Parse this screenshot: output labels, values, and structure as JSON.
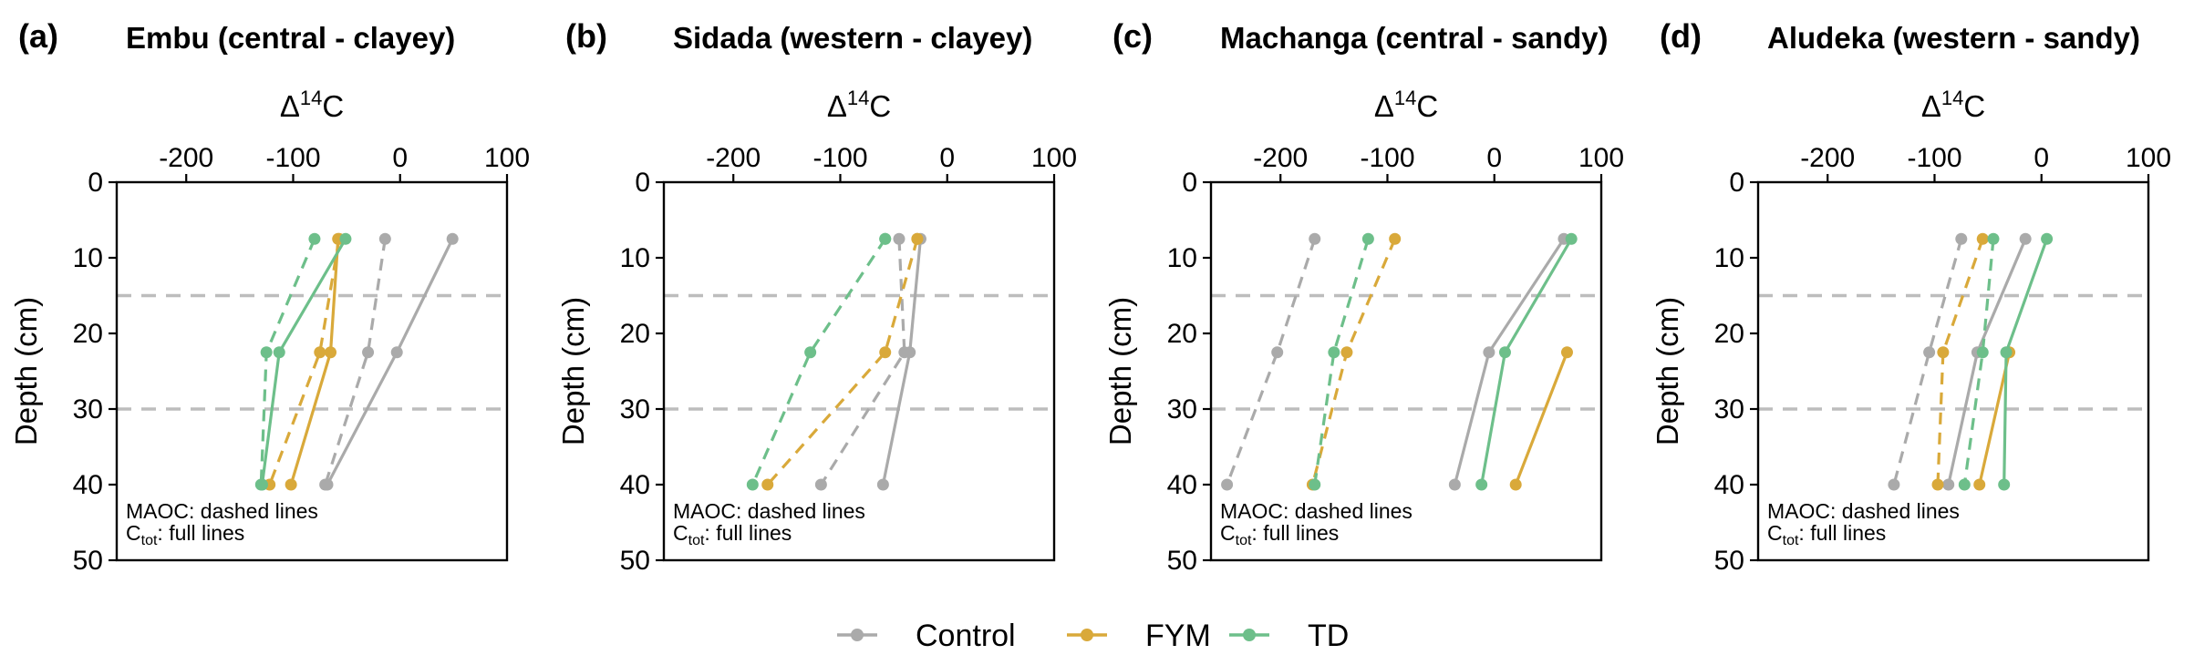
{
  "legend": [
    {
      "name": "Control",
      "color": "#AAAAAA"
    },
    {
      "name": "FYM",
      "color": "#D9A93A"
    },
    {
      "name": "TD",
      "color": "#6DBF8A"
    }
  ],
  "chart_data": [
    {
      "type": "line",
      "panel_letter": "(a)",
      "title": "Embu (central - clayey)",
      "xlabel_main": "Δ",
      "xlabel_sup": "14",
      "xlabel_tail": "C",
      "ylabel": "Depth (cm)",
      "xlim": [
        -265,
        100
      ],
      "ylim": [
        50,
        0
      ],
      "xticks": [
        -200,
        -100,
        0,
        100
      ],
      "yticks": [
        0,
        10,
        20,
        30,
        40,
        50
      ],
      "hlines": [
        15,
        30
      ],
      "note_line1": "MAOC: dashed lines",
      "note_line2_main": "C",
      "note_line2_sub": "tot",
      "note_line2_tail": ": full lines",
      "series": [
        {
          "name": "Control",
          "style": "solid",
          "points": [
            [
              49,
              7.5
            ],
            [
              -3,
              22.5
            ],
            [
              -68,
              40
            ]
          ]
        },
        {
          "name": "Control",
          "style": "dashed",
          "points": [
            [
              -14,
              7.5
            ],
            [
              -30,
              22.5
            ],
            [
              -70,
              40
            ]
          ]
        },
        {
          "name": "FYM",
          "style": "solid",
          "points": [
            [
              -58,
              7.5
            ],
            [
              -65,
              22.5
            ],
            [
              -102,
              40
            ]
          ]
        },
        {
          "name": "FYM",
          "style": "dashed",
          "points": [
            [
              -57,
              7.5
            ],
            [
              -75,
              22.5
            ],
            [
              -122,
              40
            ]
          ]
        },
        {
          "name": "TD",
          "style": "solid",
          "points": [
            [
              -51,
              7.5
            ],
            [
              -113,
              22.5
            ],
            [
              -129,
              40
            ]
          ]
        },
        {
          "name": "TD",
          "style": "dashed",
          "points": [
            [
              -80,
              7.5
            ],
            [
              -125,
              22.5
            ],
            [
              -130,
              40
            ]
          ]
        }
      ]
    },
    {
      "type": "line",
      "panel_letter": "(b)",
      "title": "Sidada (western - clayey)",
      "xlabel_main": "Δ",
      "xlabel_sup": "14",
      "xlabel_tail": "C",
      "ylabel": "Depth (cm)",
      "xlim": [
        -265,
        100
      ],
      "ylim": [
        50,
        0
      ],
      "xticks": [
        -200,
        -100,
        0,
        100
      ],
      "yticks": [
        0,
        10,
        20,
        30,
        40,
        50
      ],
      "hlines": [
        15,
        30
      ],
      "note_line1": "MAOC: dashed lines",
      "note_line2_main": "C",
      "note_line2_sub": "tot",
      "note_line2_tail": ": full lines",
      "series": [
        {
          "name": "Control",
          "style": "solid",
          "points": [
            [
              -25,
              7.5
            ],
            [
              -35,
              22.5
            ],
            [
              -60,
              40
            ]
          ]
        },
        {
          "name": "Control",
          "style": "dashed",
          "points": [
            [
              -45,
              7.5
            ],
            [
              -40,
              22.5
            ],
            [
              -118,
              40
            ]
          ]
        },
        {
          "name": "FYM",
          "style": "solid",
          "points": [
            [
              -28,
              7.5
            ]
          ]
        },
        {
          "name": "FYM",
          "style": "dashed",
          "points": [
            [
              -28,
              7.5
            ],
            [
              -58,
              22.5
            ],
            [
              -168,
              40
            ]
          ]
        },
        {
          "name": "TD",
          "style": "solid",
          "points": [
            [
              -58,
              7.5
            ]
          ]
        },
        {
          "name": "TD",
          "style": "dashed",
          "points": [
            [
              -58,
              7.5
            ],
            [
              -128,
              22.5
            ],
            [
              -182,
              40
            ]
          ]
        }
      ]
    },
    {
      "type": "line",
      "panel_letter": "(c)",
      "title": "Machanga (central - sandy)",
      "xlabel_main": "Δ",
      "xlabel_sup": "14",
      "xlabel_tail": "C",
      "ylabel": "Depth (cm)",
      "xlim": [
        -265,
        100
      ],
      "ylim": [
        50,
        0
      ],
      "xticks": [
        -200,
        -100,
        0,
        100
      ],
      "yticks": [
        0,
        10,
        20,
        30,
        40,
        50
      ],
      "hlines": [
        15,
        30
      ],
      "note_line1": "MAOC: dashed lines",
      "note_line2_main": "C",
      "note_line2_sub": "tot",
      "note_line2_tail": ": full lines",
      "series": [
        {
          "name": "Control",
          "style": "solid",
          "points": [
            [
              65,
              7.5
            ],
            [
              -5,
              22.5
            ],
            [
              -37,
              40
            ]
          ]
        },
        {
          "name": "Control",
          "style": "dashed",
          "points": [
            [
              -168,
              7.5
            ],
            [
              -203,
              22.5
            ],
            [
              -250,
              40
            ]
          ]
        },
        {
          "name": "FYM",
          "style": "solid",
          "points": [
            [
              68,
              22.5
            ],
            [
              20,
              40
            ]
          ]
        },
        {
          "name": "FYM",
          "style": "dashed",
          "points": [
            [
              -93,
              7.5
            ],
            [
              -138,
              22.5
            ],
            [
              -170,
              40
            ]
          ]
        },
        {
          "name": "TD",
          "style": "solid",
          "points": [
            [
              72,
              7.5
            ],
            [
              10,
              22.5
            ],
            [
              -12,
              40
            ]
          ]
        },
        {
          "name": "TD",
          "style": "dashed",
          "points": [
            [
              -118,
              7.5
            ],
            [
              -150,
              22.5
            ],
            [
              -168,
              40
            ]
          ]
        }
      ]
    },
    {
      "type": "line",
      "panel_letter": "(d)",
      "title": "Aludeka (western - sandy)",
      "xlabel_main": "Δ",
      "xlabel_sup": "14",
      "xlabel_tail": "C",
      "ylabel": "Depth (cm)",
      "xlim": [
        -265,
        100
      ],
      "ylim": [
        50,
        0
      ],
      "xticks": [
        -200,
        -100,
        0,
        100
      ],
      "yticks": [
        0,
        10,
        20,
        30,
        40,
        50
      ],
      "hlines": [
        15,
        30
      ],
      "note_line1": "MAOC: dashed lines",
      "note_line2_main": "C",
      "note_line2_sub": "tot",
      "note_line2_tail": ": full lines",
      "series": [
        {
          "name": "Control",
          "style": "solid",
          "points": [
            [
              -15,
              7.5
            ],
            [
              -60,
              22.5
            ],
            [
              -87,
              40
            ]
          ]
        },
        {
          "name": "Control",
          "style": "dashed",
          "points": [
            [
              -75,
              7.5
            ],
            [
              -105,
              22.5
            ],
            [
              -138,
              40
            ]
          ]
        },
        {
          "name": "FYM",
          "style": "solid",
          "points": [
            [
              -30,
              22.5
            ],
            [
              -58,
              40
            ]
          ]
        },
        {
          "name": "FYM",
          "style": "dashed",
          "points": [
            [
              -55,
              7.5
            ],
            [
              -92,
              22.5
            ],
            [
              -97,
              40
            ]
          ]
        },
        {
          "name": "TD",
          "style": "solid",
          "points": [
            [
              5,
              7.5
            ],
            [
              -33,
              22.5
            ],
            [
              -35,
              40
            ]
          ]
        },
        {
          "name": "TD",
          "style": "dashed",
          "points": [
            [
              -45,
              7.5
            ],
            [
              -55,
              22.5
            ],
            [
              -72,
              40
            ]
          ]
        }
      ]
    }
  ]
}
